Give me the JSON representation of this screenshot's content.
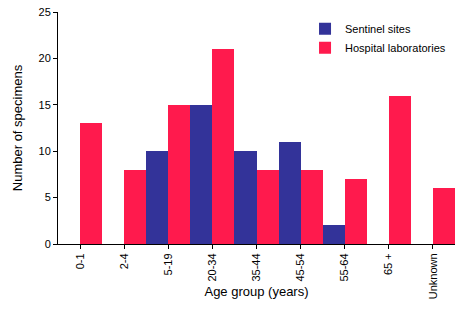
{
  "chart_data": {
    "type": "bar",
    "x_label": "Age group (years)",
    "y_label": "Number of specimens",
    "categories": [
      "0-1",
      "2-4",
      "5-19",
      "20-34",
      "35-44",
      "45-54",
      "55-64",
      "65 +",
      "Unknown"
    ],
    "series": [
      {
        "name": "Sentinel sites",
        "color": "#333399",
        "values": [
          null,
          null,
          10,
          15,
          10,
          11,
          2,
          null,
          null
        ]
      },
      {
        "name": "Hospital laboratories",
        "color": "#ff1a4d",
        "values": [
          13,
          8,
          15,
          21,
          8,
          8,
          7,
          16,
          6
        ]
      }
    ],
    "ylim": [
      0,
      25
    ],
    "yticks": [
      0,
      5,
      10,
      15,
      20,
      25
    ],
    "grid": false,
    "legend": "upper right"
  }
}
